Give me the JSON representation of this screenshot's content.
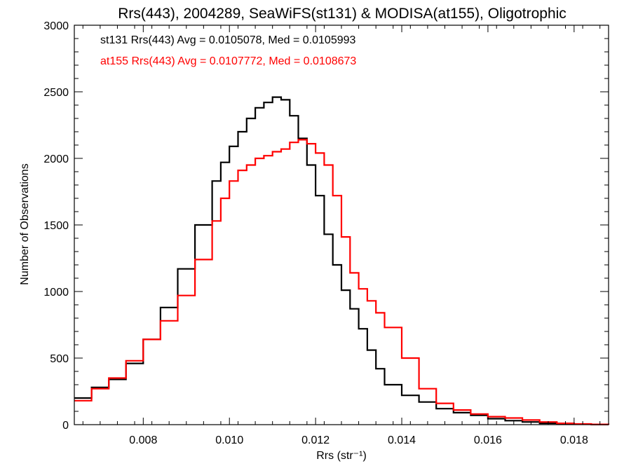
{
  "chart_data": {
    "type": "line",
    "title": "Rrs(443), 2004289, SeaWiFS(st131) & MODISA(at155), Oligotrophic",
    "xlabel": "Rrs (str⁻¹)",
    "ylabel": "Number of Observations",
    "xlim": [
      0.0064,
      0.0188
    ],
    "ylim": [
      0,
      3000
    ],
    "xticks": [
      "0.008",
      "0.010",
      "0.012",
      "0.014",
      "0.016",
      "0.018"
    ],
    "yticks": [
      "0",
      "500",
      "1000",
      "1500",
      "2000",
      "2500",
      "3000"
    ],
    "grid": false,
    "annotations": [
      {
        "text": "st131 Rrs(443) Avg = 0.0105078, Med = 0.0105993",
        "color": "#000000"
      },
      {
        "text": "at155 Rrs(443) Avg = 0.0107772, Med = 0.0108673",
        "color": "#ff0000"
      }
    ],
    "series": [
      {
        "color": "#000000",
        "x": [
          0.0064,
          0.0068,
          0.0072,
          0.0076,
          0.008,
          0.0084,
          0.0088,
          0.0092,
          0.0096,
          0.0098,
          0.01,
          0.0102,
          0.0104,
          0.0106,
          0.0108,
          0.011,
          0.0112,
          0.0114,
          0.0116,
          0.0118,
          0.012,
          0.0122,
          0.0124,
          0.0126,
          0.0128,
          0.013,
          0.0132,
          0.0134,
          0.0136,
          0.014,
          0.0144,
          0.0148,
          0.0152,
          0.0156,
          0.016,
          0.0164,
          0.0168,
          0.0172,
          0.0176,
          0.018,
          0.0184,
          0.0188
        ],
        "values": [
          200,
          280,
          340,
          460,
          640,
          880,
          1170,
          1500,
          1830,
          1970,
          2090,
          2200,
          2300,
          2380,
          2420,
          2460,
          2440,
          2320,
          2150,
          1950,
          1720,
          1430,
          1200,
          1010,
          870,
          720,
          560,
          420,
          300,
          220,
          170,
          120,
          90,
          70,
          45,
          30,
          20,
          10,
          5,
          3,
          1,
          0
        ]
      },
      {
        "color": "#ff0000",
        "x": [
          0.0064,
          0.0068,
          0.0072,
          0.0076,
          0.008,
          0.0084,
          0.0088,
          0.0092,
          0.0096,
          0.0098,
          0.01,
          0.0102,
          0.0104,
          0.0106,
          0.0108,
          0.011,
          0.0112,
          0.0114,
          0.0116,
          0.0118,
          0.012,
          0.0122,
          0.0124,
          0.0126,
          0.0128,
          0.013,
          0.0132,
          0.0134,
          0.0136,
          0.014,
          0.0144,
          0.0148,
          0.0152,
          0.0156,
          0.016,
          0.0164,
          0.0168,
          0.0172,
          0.0176,
          0.018,
          0.0184,
          0.0188
        ],
        "values": [
          180,
          270,
          350,
          480,
          640,
          780,
          970,
          1240,
          1530,
          1700,
          1830,
          1910,
          1950,
          2000,
          2020,
          2050,
          2070,
          2120,
          2140,
          2110,
          2040,
          1950,
          1720,
          1410,
          1140,
          1020,
          930,
          840,
          730,
          500,
          270,
          160,
          110,
          80,
          60,
          50,
          35,
          20,
          10,
          5,
          2,
          0
        ]
      }
    ]
  }
}
